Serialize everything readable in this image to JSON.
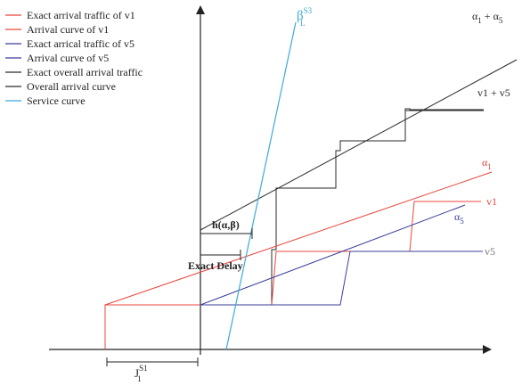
{
  "colors": {
    "red": "#e8473c",
    "blue": "#3a3f9a",
    "dark": "#2a2a2a",
    "gray": "#777777",
    "cyan": "#3fa9d6"
  },
  "legend": [
    {
      "label": "Exact arrival traffic of v1",
      "color": "#e8473c"
    },
    {
      "label": "Arrival curve of v1",
      "color": "#e8473c"
    },
    {
      "label": "Exact arrical traffic of v5",
      "color": "#3a3f9a"
    },
    {
      "label": "Arrival curve of v5",
      "color": "#3a3f9a"
    },
    {
      "label": "Exact overall arrival traffic",
      "color": "#2a2a2a"
    },
    {
      "label": "Overall arrival curve",
      "color": "#2a2a2a"
    },
    {
      "label": "Service curve",
      "color": "#3fa9d6"
    }
  ],
  "labels": {
    "beta": "β",
    "beta_sup": "S3",
    "beta_sub": "L",
    "alpha_sum": "α",
    "alpha_sum_sub1": "1",
    "alpha_sum_plus": " + α",
    "alpha_sum_sub2": "5",
    "v_sum": "v1 + v5",
    "alpha1": "α",
    "alpha1_sub": "1",
    "v1": "v1",
    "alpha5": "α",
    "alpha5_sub": "5",
    "v5": "v5",
    "h": "h(α,β)",
    "exact_delay": "Exact Delay",
    "jitter": "J",
    "jitter_sup": "S1",
    "jitter_sub": "1"
  }
}
